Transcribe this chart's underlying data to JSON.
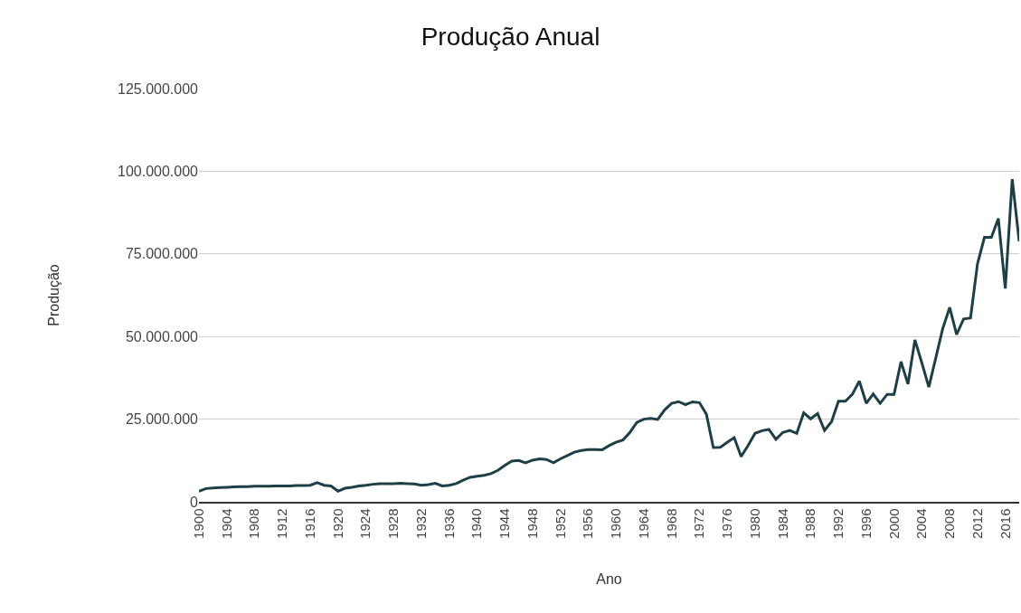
{
  "chart_data": {
    "type": "line",
    "title": "Produção Anual",
    "xlabel": "Ano",
    "ylabel": "Produção",
    "x": [
      1900,
      1901,
      1902,
      1903,
      1904,
      1905,
      1906,
      1907,
      1908,
      1909,
      1910,
      1911,
      1912,
      1913,
      1914,
      1915,
      1916,
      1917,
      1918,
      1919,
      1920,
      1921,
      1922,
      1923,
      1924,
      1925,
      1926,
      1927,
      1928,
      1929,
      1930,
      1931,
      1932,
      1933,
      1934,
      1935,
      1936,
      1937,
      1938,
      1939,
      1940,
      1941,
      1942,
      1943,
      1944,
      1945,
      1946,
      1947,
      1948,
      1949,
      1950,
      1951,
      1952,
      1953,
      1954,
      1955,
      1956,
      1957,
      1958,
      1959,
      1960,
      1961,
      1962,
      1963,
      1964,
      1965,
      1966,
      1967,
      1968,
      1969,
      1970,
      1971,
      1972,
      1973,
      1974,
      1975,
      1976,
      1977,
      1978,
      1979,
      1980,
      1981,
      1982,
      1983,
      1984,
      1985,
      1986,
      1987,
      1988,
      1989,
      1990,
      1991,
      1992,
      1993,
      1994,
      1995,
      1996,
      1997,
      1998,
      1999,
      2000,
      2001,
      2002,
      2003,
      2004,
      2005,
      2006,
      2007,
      2008,
      2009,
      2010,
      2011,
      2012,
      2013,
      2014,
      2015,
      2016,
      2017,
      2018
    ],
    "series": [
      {
        "color": "#1e3f47",
        "values": [
          3200000,
          4000000,
          4200000,
          4300000,
          4400000,
          4500000,
          4600000,
          4600000,
          4700000,
          4700000,
          4700000,
          4800000,
          4800000,
          4800000,
          4900000,
          4900000,
          5000000,
          5800000,
          5000000,
          4800000,
          3200000,
          4100000,
          4400000,
          4800000,
          5000000,
          5300000,
          5500000,
          5500000,
          5500000,
          5600000,
          5500000,
          5400000,
          5000000,
          5200000,
          5600000,
          4800000,
          5000000,
          5500000,
          6500000,
          7400000,
          7700000,
          8000000,
          8500000,
          9500000,
          11000000,
          12300000,
          12500000,
          11800000,
          12600000,
          13000000,
          12800000,
          11800000,
          13000000,
          14000000,
          15000000,
          15500000,
          15800000,
          15800000,
          15700000,
          17000000,
          18000000,
          18700000,
          21000000,
          24000000,
          25000000,
          25200000,
          24900000,
          27800000,
          29800000,
          30300000,
          29400000,
          30200000,
          30000000,
          26500000,
          16400000,
          16500000,
          18000000,
          19400000,
          13700000,
          17000000,
          20700000,
          21500000,
          21900000,
          18900000,
          21000000,
          21600000,
          20700000,
          26900000,
          25100000,
          26700000,
          21600000,
          24200000,
          30400000,
          30400000,
          32500000,
          36500000,
          29800000,
          32600000,
          29800000,
          32500000,
          32500000,
          42400000,
          35600000,
          49000000,
          42000000,
          34700000,
          43500000,
          52400000,
          58800000,
          50600000,
          55300000,
          55600000,
          72000000,
          80000000,
          80000000,
          85700000,
          64500000,
          97600000,
          78800000
        ]
      }
    ],
    "xlim": [
      1900,
      2018
    ],
    "ylim": [
      0,
      125000000
    ],
    "xticks": [
      1900,
      1904,
      1908,
      1912,
      1916,
      1920,
      1924,
      1928,
      1932,
      1936,
      1940,
      1944,
      1948,
      1952,
      1956,
      1960,
      1964,
      1968,
      1972,
      1976,
      1980,
      1984,
      1988,
      1992,
      1996,
      2000,
      2004,
      2008,
      2012,
      2016
    ],
    "yticks": [
      0,
      {
        "value": 25000000,
        "label": "25.000.000"
      },
      {
        "value": 50000000,
        "label": "50.000.000"
      },
      {
        "value": 75000000,
        "label": "75.000.000"
      },
      {
        "value": 100000000,
        "label": "100.000.000"
      },
      {
        "value": 125000000,
        "label": "125.000.000"
      }
    ],
    "grid": "y",
    "marker": "none",
    "line_style": "solid"
  }
}
